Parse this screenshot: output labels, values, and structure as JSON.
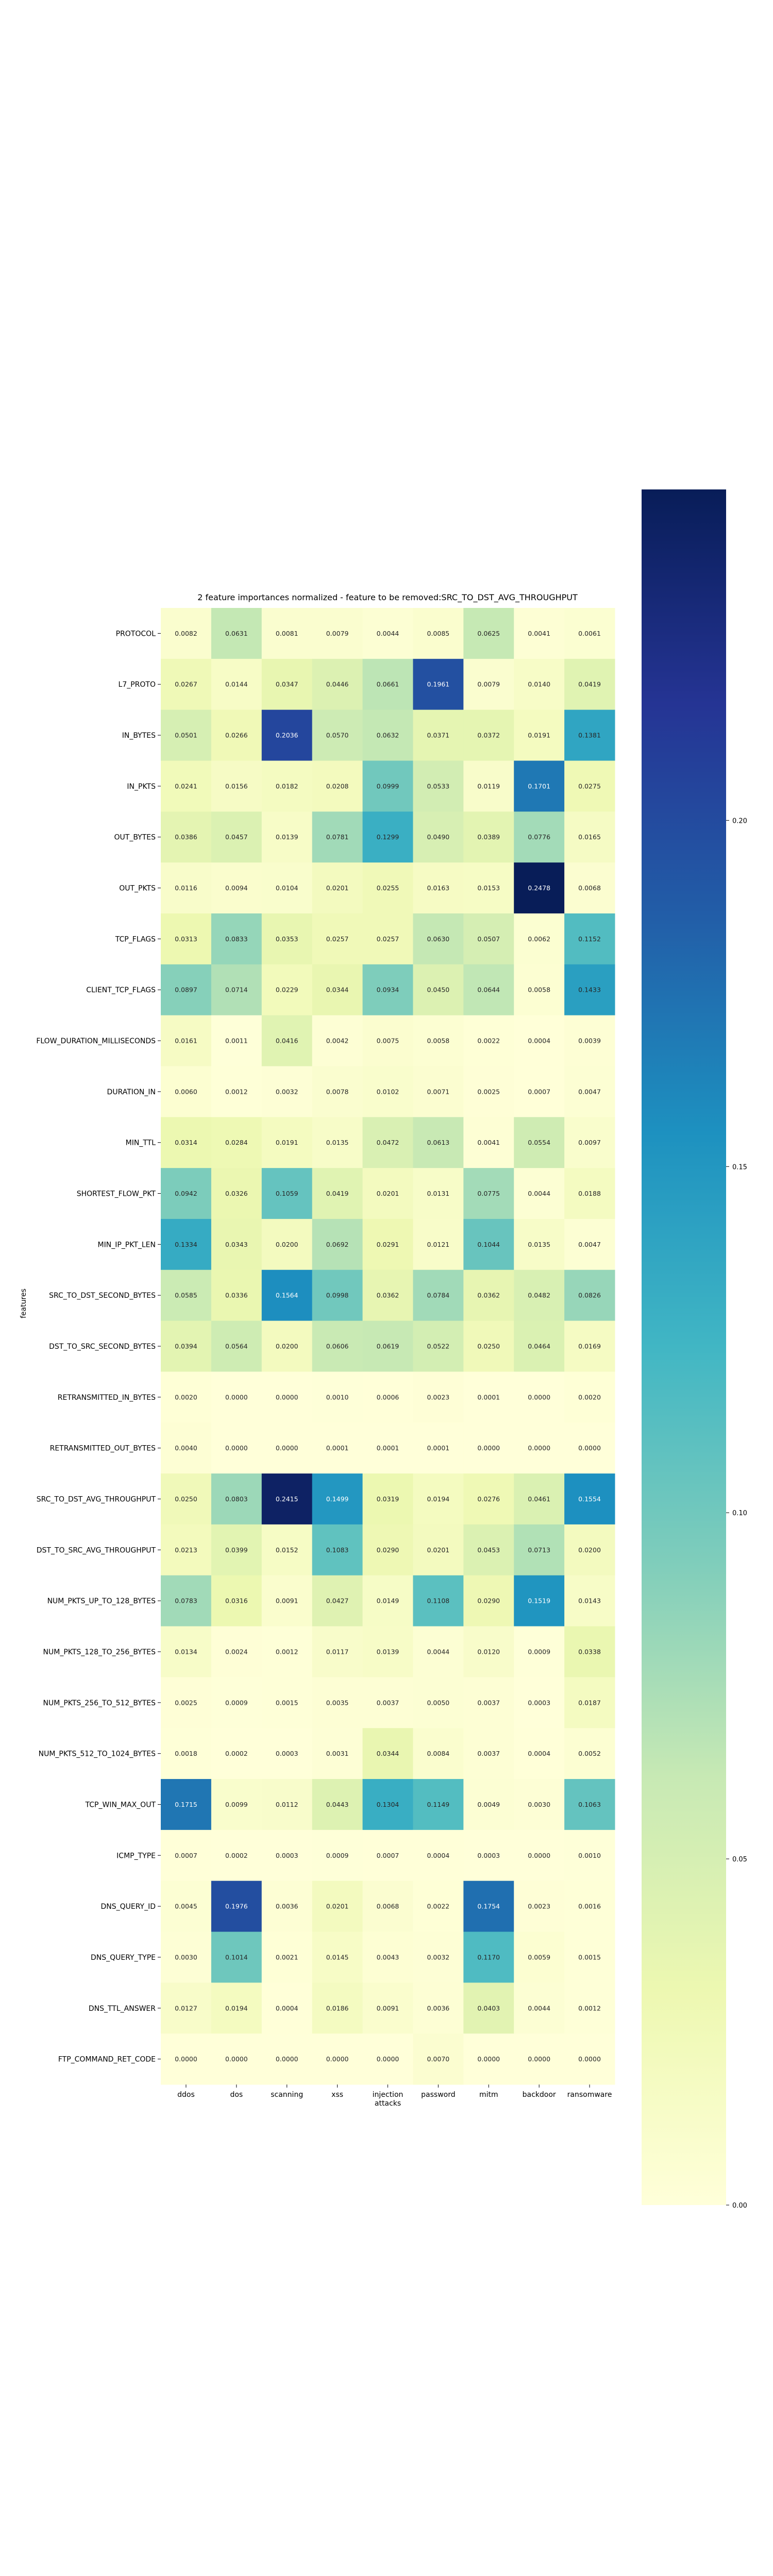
{
  "chart_data": {
    "type": "heatmap",
    "title": "2 feature importances normalized - feature to be removed:SRC_TO_DST_AVG_THROUGHPUT",
    "xlabel": "",
    "ylabel": "features",
    "columns": [
      "ddos",
      "dos",
      "scanning",
      "xss",
      "injection\nattacks",
      "password",
      "mitm",
      "backdoor",
      "ransomware"
    ],
    "rows": [
      "PROTOCOL",
      "L7_PROTO",
      "IN_BYTES",
      "IN_PKTS",
      "OUT_BYTES",
      "OUT_PKTS",
      "TCP_FLAGS",
      "CLIENT_TCP_FLAGS",
      "FLOW_DURATION_MILLISECONDS",
      "DURATION_IN",
      "MIN_TTL",
      "SHORTEST_FLOW_PKT",
      "MIN_IP_PKT_LEN",
      "SRC_TO_DST_SECOND_BYTES",
      "DST_TO_SRC_SECOND_BYTES",
      "RETRANSMITTED_IN_BYTES",
      "RETRANSMITTED_OUT_BYTES",
      "SRC_TO_DST_AVG_THROUGHPUT",
      "DST_TO_SRC_AVG_THROUGHPUT",
      "NUM_PKTS_UP_TO_128_BYTES",
      "NUM_PKTS_128_TO_256_BYTES",
      "NUM_PKTS_256_TO_512_BYTES",
      "NUM_PKTS_512_TO_1024_BYTES",
      "TCP_WIN_MAX_OUT",
      "ICMP_TYPE",
      "DNS_QUERY_ID",
      "DNS_QUERY_TYPE",
      "DNS_TTL_ANSWER",
      "FTP_COMMAND_RET_CODE"
    ],
    "values": [
      [
        0.0082,
        0.0631,
        0.0081,
        0.0079,
        0.0044,
        0.0085,
        0.0625,
        0.0041,
        0.0061
      ],
      [
        0.0267,
        0.0144,
        0.0347,
        0.0446,
        0.0661,
        0.1961,
        0.0079,
        0.014,
        0.0419
      ],
      [
        0.0501,
        0.0266,
        0.2036,
        0.057,
        0.0632,
        0.0371,
        0.0372,
        0.0191,
        0.1381
      ],
      [
        0.0241,
        0.0156,
        0.0182,
        0.0208,
        0.0999,
        0.0533,
        0.0119,
        0.1701,
        0.0275
      ],
      [
        0.0386,
        0.0457,
        0.0139,
        0.0781,
        0.1299,
        0.049,
        0.0389,
        0.0776,
        0.0165
      ],
      [
        0.0116,
        0.0094,
        0.0104,
        0.0201,
        0.0255,
        0.0163,
        0.0153,
        0.2478,
        0.0068
      ],
      [
        0.0313,
        0.0833,
        0.0353,
        0.0257,
        0.0257,
        0.063,
        0.0507,
        0.0062,
        0.1152
      ],
      [
        0.0897,
        0.0714,
        0.0229,
        0.0344,
        0.0934,
        0.045,
        0.0644,
        0.0058,
        0.1433
      ],
      [
        0.0161,
        0.0011,
        0.0416,
        0.0042,
        0.0075,
        0.0058,
        0.0022,
        0.0004,
        0.0039
      ],
      [
        0.006,
        0.0012,
        0.0032,
        0.0078,
        0.0102,
        0.0071,
        0.0025,
        0.0007,
        0.0047
      ],
      [
        0.0314,
        0.0284,
        0.0191,
        0.0135,
        0.0472,
        0.0613,
        0.0041,
        0.0554,
        0.0097
      ],
      [
        0.0942,
        0.0326,
        0.1059,
        0.0419,
        0.0201,
        0.0131,
        0.0775,
        0.0044,
        0.0188
      ],
      [
        0.1334,
        0.0343,
        0.02,
        0.0692,
        0.0291,
        0.0121,
        0.1044,
        0.0135,
        0.0047
      ],
      [
        0.0585,
        0.0336,
        0.1564,
        0.0998,
        0.0362,
        0.0784,
        0.0362,
        0.0482,
        0.0826
      ],
      [
        0.0394,
        0.0564,
        0.02,
        0.0606,
        0.0619,
        0.0522,
        0.025,
        0.0464,
        0.0169
      ],
      [
        0.002,
        0.0,
        0.0,
        0.001,
        0.0006,
        0.0023,
        0.0001,
        0.0,
        0.002
      ],
      [
        0.004,
        0.0,
        0.0,
        0.0001,
        0.0001,
        0.0001,
        0.0,
        0.0,
        0.0
      ],
      [
        0.025,
        0.0803,
        0.2415,
        0.1499,
        0.0319,
        0.0194,
        0.0276,
        0.0461,
        0.1554
      ],
      [
        0.0213,
        0.0399,
        0.0152,
        0.1083,
        0.029,
        0.0201,
        0.0453,
        0.0713,
        0.02
      ],
      [
        0.0783,
        0.0316,
        0.0091,
        0.0427,
        0.0149,
        0.1108,
        0.029,
        0.1519,
        0.0143
      ],
      [
        0.0134,
        0.0024,
        0.0012,
        0.0117,
        0.0139,
        0.0044,
        0.012,
        0.0009,
        0.0338
      ],
      [
        0.0025,
        0.0009,
        0.0015,
        0.0035,
        0.0037,
        0.005,
        0.0037,
        0.0003,
        0.0187
      ],
      [
        0.0018,
        0.0002,
        0.0003,
        0.0031,
        0.0344,
        0.0084,
        0.0037,
        0.0004,
        0.0052
      ],
      [
        0.1715,
        0.0099,
        0.0112,
        0.0443,
        0.1304,
        0.1149,
        0.0049,
        0.003,
        0.1063
      ],
      [
        0.0007,
        0.0002,
        0.0003,
        0.0009,
        0.0007,
        0.0004,
        0.0003,
        0.0,
        0.001
      ],
      [
        0.0045,
        0.1976,
        0.0036,
        0.0201,
        0.0068,
        0.0022,
        0.1754,
        0.0023,
        0.0016
      ],
      [
        0.003,
        0.1014,
        0.0021,
        0.0145,
        0.0043,
        0.0032,
        0.117,
        0.0059,
        0.0015
      ],
      [
        0.0127,
        0.0194,
        0.0004,
        0.0186,
        0.0091,
        0.0036,
        0.0403,
        0.0044,
        0.0012
      ],
      [
        0.0,
        0.0,
        0.0,
        0.0,
        0.0,
        0.007,
        0.0,
        0.0,
        0.0
      ]
    ],
    "colorbar": {
      "colormap": "YlGnBu",
      "range": [
        0,
        0.2478
      ],
      "ticks": [
        0.0,
        0.05,
        0.1,
        0.15,
        0.2
      ],
      "tick_labels": [
        "0.00",
        "0.05",
        "0.10",
        "0.15",
        "0.20"
      ]
    },
    "colormap_stops": [
      "#ffffd9",
      "#edf8b1",
      "#c7e9b4",
      "#7fcdbb",
      "#41b6c4",
      "#1d91c0",
      "#225ea8",
      "#253494",
      "#081d58"
    ]
  }
}
